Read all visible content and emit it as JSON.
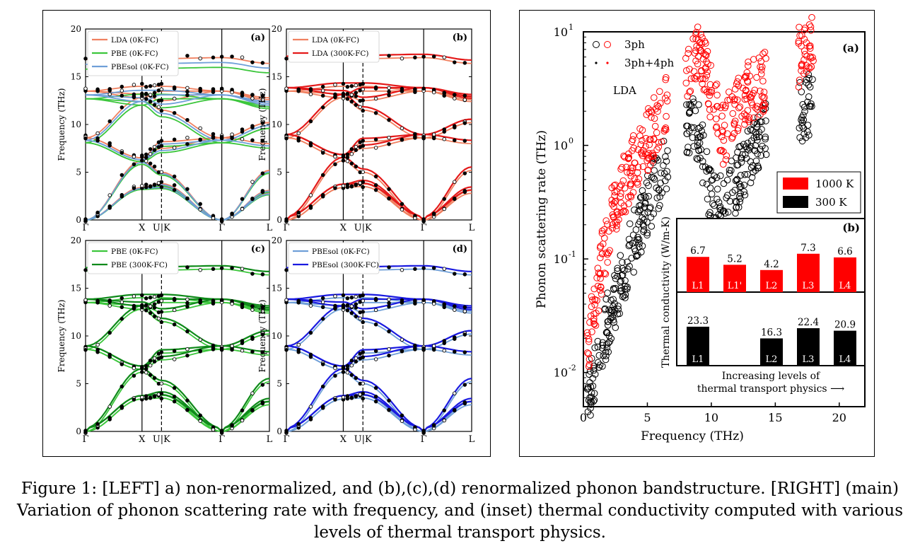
{
  "left_figure": {
    "panels": [
      {
        "id": "a",
        "label": "(a)",
        "legend": [
          {
            "name": "LDA (0K-FC)",
            "color": "#f08060"
          },
          {
            "name": "PBE (0K-FC)",
            "color": "#3cc63c"
          },
          {
            "name": "PBEsol (0K-FC)",
            "color": "#6f9fd8"
          }
        ]
      },
      {
        "id": "b",
        "label": "(b)",
        "legend": [
          {
            "name": "LDA (0K-FC)",
            "color": "#f08060"
          },
          {
            "name": "LDA (300K-FC)",
            "color": "#e41a1a"
          }
        ]
      },
      {
        "id": "c",
        "label": "(c)",
        "legend": [
          {
            "name": "PBE (0K-FC)",
            "color": "#3cc63c"
          },
          {
            "name": "PBE (300K-FC)",
            "color": "#0f8a1a"
          }
        ]
      },
      {
        "id": "d",
        "label": "(d)",
        "legend": [
          {
            "name": "PBEsol (0K-FC)",
            "color": "#6f9fd8"
          },
          {
            "name": "PBEsol (300K-FC)",
            "color": "#1a1ae0"
          }
        ]
      }
    ],
    "ylabel": "Frequency (THz)",
    "yticks": [
      "0",
      "5",
      "10",
      "15",
      "20"
    ],
    "kpoints": [
      "Γ",
      "X",
      "U|K",
      "Γ",
      "L"
    ]
  },
  "right_figure": {
    "label": "(a)",
    "ylabel": "Phonon scattering rate (THz)",
    "xlabel": "Frequency (THz)",
    "xticks": [
      "0",
      "5",
      "10",
      "15",
      "20"
    ],
    "ytick_base": "10",
    "ytick_exps": [
      "1",
      "0",
      "-1",
      "-2"
    ],
    "legend": [
      {
        "name": "3ph",
        "color": "#000000"
      },
      {
        "name": "3ph+4ph",
        "color": "#000000"
      }
    ],
    "method_label": "LDA",
    "temp_legend": [
      {
        "name": "1000 K",
        "color": "#ff0000"
      },
      {
        "name": "300 K",
        "color": "#000000"
      }
    ],
    "inset": {
      "label": "(b)",
      "ylabel": "Thermal conductivity (W/m-K)",
      "xlabel_line1": "Increasing levels of",
      "xlabel_line2": "thermal transport physics ⟶",
      "bars_1000K": [
        {
          "level": "L1",
          "value": "6.7"
        },
        {
          "level": "L1'",
          "value": "5.2"
        },
        {
          "level": "L2",
          "value": "4.2"
        },
        {
          "level": "L3",
          "value": "7.3"
        },
        {
          "level": "L4",
          "value": "6.6"
        }
      ],
      "bars_300K": [
        {
          "level": "L1",
          "value": "23.3"
        },
        {
          "level": "L2",
          "value": "16.3"
        },
        {
          "level": "L3",
          "value": "22.4"
        },
        {
          "level": "L4",
          "value": "20.9"
        }
      ]
    }
  },
  "chart_data": [
    {
      "type": "bar",
      "title": "",
      "ylabel": "Thermal conductivity (W/m-K)",
      "series": [
        {
          "name": "1000 K",
          "categories": [
            "L1",
            "L1'",
            "L2",
            "L3",
            "L4"
          ],
          "values": [
            6.7,
            5.2,
            4.2,
            7.3,
            6.6
          ]
        },
        {
          "name": "300 K",
          "categories": [
            "L1",
            "L2",
            "L3",
            "L4"
          ],
          "values": [
            23.3,
            16.3,
            22.4,
            20.9
          ]
        }
      ]
    },
    {
      "type": "scatter",
      "xlabel": "Frequency (THz)",
      "ylabel": "Phonon scattering rate (THz)",
      "xlim": [
        0,
        22
      ],
      "ylim": [
        0.005,
        10
      ],
      "log_y": true,
      "series": [
        {
          "name": "1000 K",
          "approx_envelope": [
            [
              0.3,
              0.013
            ],
            [
              1,
              0.05
            ],
            [
              2,
              0.2
            ],
            [
              3,
              0.4
            ],
            [
              4,
              0.7
            ],
            [
              5,
              1.1
            ],
            [
              6,
              1.8
            ],
            [
              8.5,
              6
            ],
            [
              9,
              7
            ],
            [
              10,
              3
            ],
            [
              11,
              1.2
            ],
            [
              12,
              2.5
            ],
            [
              13,
              3
            ],
            [
              14,
              3.5
            ],
            [
              17.5,
              7
            ],
            [
              18,
              8
            ]
          ]
        },
        {
          "name": "300 K",
          "approx_envelope": [
            [
              0.3,
              0.006
            ],
            [
              1,
              0.012
            ],
            [
              2,
              0.03
            ],
            [
              3,
              0.07
            ],
            [
              4,
              0.15
            ],
            [
              5,
              0.3
            ],
            [
              6,
              0.55
            ],
            [
              8,
              1.5
            ],
            [
              9,
              1.3
            ],
            [
              10,
              0.3
            ],
            [
              11,
              0.3
            ],
            [
              12,
              0.5
            ],
            [
              13,
              0.8
            ],
            [
              14,
              1.2
            ],
            [
              17,
              2
            ],
            [
              18,
              2.5
            ]
          ]
        }
      ]
    },
    {
      "type": "line",
      "title": "",
      "ylabel": "Frequency (THz)",
      "ylim": [
        0,
        20
      ],
      "x": [
        "Γ",
        "X",
        "U|K",
        "Γ",
        "L"
      ],
      "series": [
        {
          "name": "LDA (0K-FC)",
          "values": [
            0,
            6.7,
            5.8,
            0,
            5.4
          ]
        },
        {
          "name": "PBE (0K-FC)",
          "values": [
            0,
            5.9,
            5.2,
            0,
            5.1
          ]
        },
        {
          "name": "PBEsol (0K-FC)",
          "values": [
            0,
            6.3,
            5.5,
            0,
            5.3
          ]
        }
      ]
    }
  ]
}
